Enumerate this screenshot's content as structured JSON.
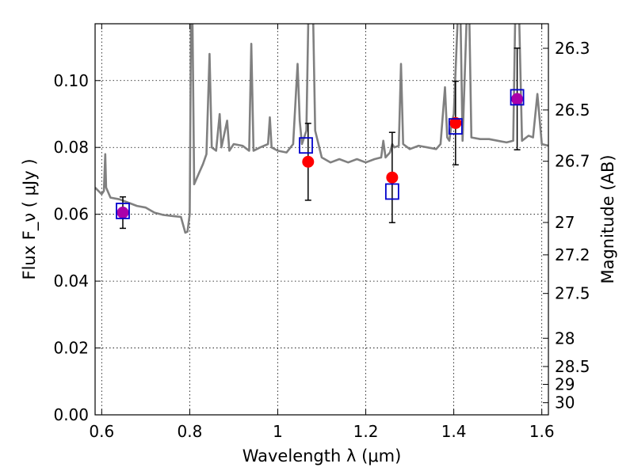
{
  "chart_data": {
    "type": "scatter",
    "xlabel": "Wavelength  λ (μm)",
    "ylabel": "Flux  F_ν  ( μJy )",
    "ylabel_right": "Magnitude (AB)",
    "xlim": [
      0.585,
      1.615
    ],
    "ylim": [
      0.0,
      0.117
    ],
    "x_ticks": [
      0.6,
      0.8,
      1.0,
      1.2,
      1.4,
      1.6
    ],
    "x_tick_labels": [
      "0.6",
      "0.8",
      "1",
      "1.2",
      "1.4",
      "1.6"
    ],
    "y_ticks": [
      0.0,
      0.02,
      0.04,
      0.06,
      0.08,
      0.1
    ],
    "y_tick_labels": [
      "0.00",
      "0.02",
      "0.04",
      "0.06",
      "0.08",
      "0.10"
    ],
    "right_ticks": [
      26.3,
      26.5,
      26.7,
      27,
      27.2,
      27.5,
      28,
      28.5,
      29,
      30
    ],
    "right_tick_labels": [
      "26.3",
      "26.5",
      "26.7",
      "27",
      "27.2",
      "27.5",
      "28",
      "28.5",
      "29",
      "30"
    ],
    "grid": true,
    "colors": {
      "model_spectrum": "#808080",
      "observed_points": "#ff0000",
      "model_photometry": "#0000cc",
      "errorbars": "#000000",
      "overlap_point": "#aa00aa"
    },
    "series": [
      {
        "kind": "line",
        "points": [
          [
            0.585,
            0.068
          ],
          [
            0.6,
            0.066
          ],
          [
            0.605,
            0.067
          ],
          [
            0.608,
            0.078
          ],
          [
            0.61,
            0.068
          ],
          [
            0.62,
            0.065
          ],
          [
            0.64,
            0.0645
          ],
          [
            0.66,
            0.0635
          ],
          [
            0.68,
            0.0625
          ],
          [
            0.7,
            0.062
          ],
          [
            0.72,
            0.0605
          ],
          [
            0.74,
            0.0598
          ],
          [
            0.76,
            0.0595
          ],
          [
            0.78,
            0.0592
          ],
          [
            0.79,
            0.0545
          ],
          [
            0.795,
            0.0548
          ],
          [
            0.8,
            0.06
          ],
          [
            0.803,
            0.122
          ],
          [
            0.806,
            0.122
          ],
          [
            0.81,
            0.069
          ],
          [
            0.82,
            0.072
          ],
          [
            0.83,
            0.075
          ],
          [
            0.838,
            0.078
          ],
          [
            0.845,
            0.108
          ],
          [
            0.85,
            0.08
          ],
          [
            0.86,
            0.079
          ],
          [
            0.868,
            0.09
          ],
          [
            0.872,
            0.08
          ],
          [
            0.885,
            0.088
          ],
          [
            0.89,
            0.079
          ],
          [
            0.9,
            0.081
          ],
          [
            0.92,
            0.0805
          ],
          [
            0.935,
            0.079
          ],
          [
            0.94,
            0.111
          ],
          [
            0.945,
            0.079
          ],
          [
            0.96,
            0.08
          ],
          [
            0.978,
            0.081
          ],
          [
            0.982,
            0.089
          ],
          [
            0.986,
            0.08
          ],
          [
            1.0,
            0.079
          ],
          [
            1.02,
            0.0785
          ],
          [
            1.035,
            0.081
          ],
          [
            1.045,
            0.105
          ],
          [
            1.05,
            0.088
          ],
          [
            1.055,
            0.081
          ],
          [
            1.065,
            0.085
          ],
          [
            1.07,
            0.122
          ],
          [
            1.08,
            0.122
          ],
          [
            1.085,
            0.085
          ],
          [
            1.1,
            0.077
          ],
          [
            1.12,
            0.0755
          ],
          [
            1.14,
            0.0765
          ],
          [
            1.16,
            0.0755
          ],
          [
            1.18,
            0.0765
          ],
          [
            1.2,
            0.0755
          ],
          [
            1.22,
            0.0765
          ],
          [
            1.235,
            0.077
          ],
          [
            1.24,
            0.082
          ],
          [
            1.245,
            0.077
          ],
          [
            1.255,
            0.0785
          ],
          [
            1.26,
            0.081
          ],
          [
            1.265,
            0.08
          ],
          [
            1.275,
            0.0805
          ],
          [
            1.28,
            0.105
          ],
          [
            1.285,
            0.081
          ],
          [
            1.3,
            0.0795
          ],
          [
            1.32,
            0.0805
          ],
          [
            1.34,
            0.08
          ],
          [
            1.36,
            0.0795
          ],
          [
            1.37,
            0.081
          ],
          [
            1.38,
            0.098
          ],
          [
            1.385,
            0.083
          ],
          [
            1.39,
            0.082
          ],
          [
            1.395,
            0.087
          ],
          [
            1.4,
            0.09
          ],
          [
            1.41,
            0.122
          ],
          [
            1.415,
            0.122
          ],
          [
            1.42,
            0.082
          ],
          [
            1.43,
            0.122
          ],
          [
            1.435,
            0.122
          ],
          [
            1.44,
            0.083
          ],
          [
            1.46,
            0.0825
          ],
          [
            1.48,
            0.0825
          ],
          [
            1.5,
            0.082
          ],
          [
            1.52,
            0.0815
          ],
          [
            1.535,
            0.082
          ],
          [
            1.54,
            0.122
          ],
          [
            1.548,
            0.122
          ],
          [
            1.555,
            0.082
          ],
          [
            1.57,
            0.0835
          ],
          [
            1.58,
            0.083
          ],
          [
            1.59,
            0.096
          ],
          [
            1.6,
            0.081
          ],
          [
            1.615,
            0.0805
          ]
        ]
      },
      {
        "kind": "observed",
        "points": [
          {
            "x": 0.648,
            "y": 0.0605,
            "err": 0.0047
          },
          {
            "x": 1.069,
            "y": 0.0757,
            "err": 0.0115
          },
          {
            "x": 1.26,
            "y": 0.071,
            "err": 0.0135
          },
          {
            "x": 1.404,
            "y": 0.0873,
            "err": 0.0125
          },
          {
            "x": 1.544,
            "y": 0.0945,
            "err": 0.0152
          }
        ]
      },
      {
        "kind": "model_photometry",
        "points": [
          {
            "x": 0.648,
            "y": 0.061
          },
          {
            "x": 1.064,
            "y": 0.0806
          },
          {
            "x": 1.26,
            "y": 0.0668
          },
          {
            "x": 1.404,
            "y": 0.0863
          },
          {
            "x": 1.544,
            "y": 0.095
          }
        ]
      }
    ]
  }
}
